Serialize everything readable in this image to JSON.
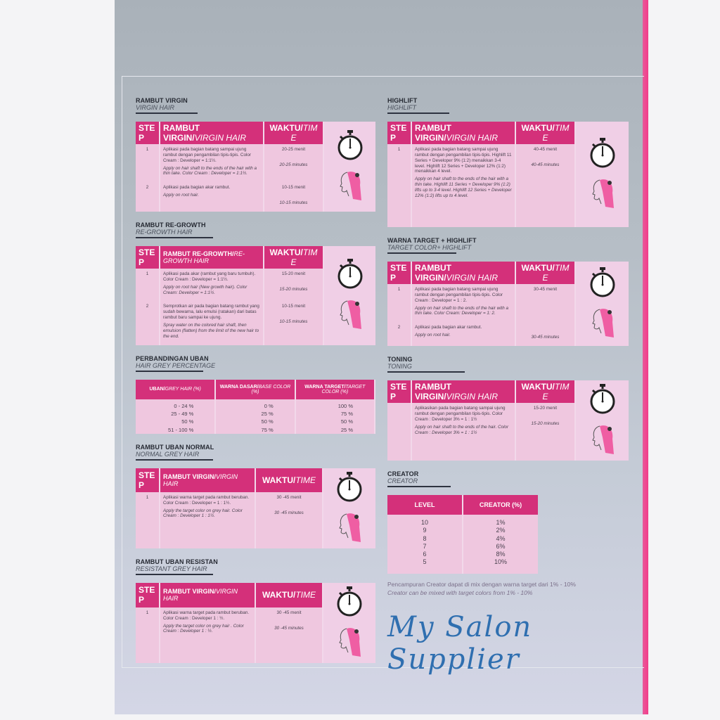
{
  "colors": {
    "header_pink": "#d4307a",
    "body_pink": "#efc7df",
    "watermark_blue": "#2f6fb0"
  },
  "watermark": "My Salon Supplier",
  "sections": {
    "virgin": {
      "title": "RAMBUT VIRGIN",
      "subtitle": "VIRGIN HAIR",
      "h_step": "STEP",
      "h_desc": "RAMBUT VIRGIN/",
      "h_desc_it": "VIRGIN HAIR",
      "h_time": "WAKTU/",
      "h_time_it": "TIME",
      "rows": [
        {
          "step": "1",
          "id": "Aplikasi pada bagian batang sampai ujung rambut dengan pengambilan tipis-tipis. Color Cream : Developer = 1:1½.",
          "en": "Apply on hair shaft to the ends of the hair with a thin take. Color Cream : Developer = 1:1½.",
          "time_id": "20-25 menit",
          "time_en": "20-25 minutes"
        },
        {
          "step": "2",
          "id": "Aplikasi pada bagian akar rambut.",
          "en": "Apply on root hair.",
          "time_id": "10-15 menit",
          "time_en": "10-15 minutes"
        }
      ]
    },
    "highlift": {
      "title": "HIGHLIFT",
      "subtitle": "HIGHLIFT",
      "h_step": "STEP",
      "h_desc": "RAMBUT VIRGIN/",
      "h_desc_it": "VIRGIN HAIR",
      "h_time": "WAKTU/",
      "h_time_it": "TIME",
      "rows": [
        {
          "step": "1",
          "id": "Aplikasi pada bagian batang sampai ujung rambut dengan pengambilan tipis-tipis. Highlift 11 Series + Developer 9% (1:2) menaikkan 3-4 level. Highlift 12 Series + Developer 12% (1:2) menaikkan 4 level.",
          "en": "Apply on hair shaft to the ends of the hair with a thin take. Highlift 11 Series + Developer 9% (1:2) lifts up to 3-4 level. Highlift 12 Series + Developer 12% (1:2) lifts up to 4 level.",
          "time_id": "40-45 menit",
          "time_en": "40-45 minutes"
        }
      ]
    },
    "regrowth": {
      "title": "RAMBUT RE-GROWTH",
      "subtitle": "RE-GROWTH HAIR",
      "h_step": "STEP",
      "h_desc": "RAMBUT RE-GROWTH/",
      "h_desc_it": "RE-GROWTH HAIR",
      "h_time": "WAKTU/",
      "h_time_it": "TIME",
      "rows": [
        {
          "step": "1",
          "id": "Aplikasi pada akar (rambut yang baru tumbuh). Color Cream : Developer = 1:1½.",
          "en": "Apply on root hair (New growth hair). Color Cream: Developer = 1:1½.",
          "time_id": "15-20 menit",
          "time_en": "15-20 minutes"
        },
        {
          "step": "2",
          "id": "Semprotkan air pada bagian batang rambut yang sudah bewarna, lalu emulsi (ratakan) dari batas rambut baru sampai ke ujung.",
          "en": "Spray water on the colored hair shaft, then emulsion (flatten) from the limit of the new hair to the end.",
          "time_id": "10-15 menit",
          "time_en": "10-15 minutes"
        }
      ]
    },
    "target": {
      "title": "WARNA TARGET + HIGHLIFT",
      "subtitle": "TARGET COLOR+ HIGHLIFT",
      "h_step": "STEP",
      "h_desc": "RAMBUT VIRGIN/",
      "h_desc_it": "VIRGIN HAIR",
      "h_time": "WAKTU/",
      "h_time_it": "TIME",
      "rows": [
        {
          "step": "1",
          "id": "Aplikasi pada bagian batang sampai ujung rambut dengan pengambilan tipis-tipis. Color Cream : Developer = 1 : 2.",
          "en": "Apply on hair shaft to the ends of the hair with a thin take. Color Cream: Developer = 1: 2.",
          "time_id": "30-45 menit",
          "time_en": ""
        },
        {
          "step": "2",
          "id": "Aplikasi pada bagian akar rambut.",
          "en": "Apply on root hair.",
          "time_id": "",
          "time_en": "30-45 minutes"
        }
      ]
    },
    "toning": {
      "title": "TONING",
      "subtitle": "TONING",
      "h_step": "STEP",
      "h_desc": "RAMBUT VIRGIN/",
      "h_desc_it": "VIRGIN HAIR",
      "h_time": "WAKTU/",
      "h_time_it": "TIME",
      "rows": [
        {
          "step": "",
          "id": "Aplikasikan pada bagian batang sampai ujung rambut dengan pengambilan tipis-tipis. Color Cream : Developer 3% = 1 : 1½",
          "en": "Apply on hair shaft to the ends of the hair. Color Cream : Developer 3% = 1 : 1½",
          "time_id": "15-20 menit",
          "time_en": "15-20 minutes"
        }
      ]
    },
    "normal": {
      "title": "RAMBUT UBAN NORMAL",
      "subtitle": "NORMAL GREY HAIR",
      "h_step": "STEP",
      "h_desc": "RAMBUT VIRGIN/",
      "h_desc_it": "VIRGIN HAIR",
      "h_time": "WAKTU/",
      "h_time_it": "TIME",
      "rows": [
        {
          "step": "1",
          "id": "Aplikasi warna target pada rambut beruban. Color Cream : Developer = 1 : 1½.",
          "en": "Apply the target color on grey hair. Color Cream : Developer 1 : 1½.",
          "time_id": "30 -45 menit",
          "time_en": "30 -45 minutes"
        }
      ]
    },
    "resistant": {
      "title": "RAMBUT UBAN RESISTAN",
      "subtitle": "RESISTANT GREY HAIR",
      "h_step": "STEP",
      "h_desc": "RAMBUT VIRGIN/",
      "h_desc_it": "VIRGIN HAIR",
      "h_time": "WAKTU/",
      "h_time_it": "TIME",
      "rows": [
        {
          "step": "1",
          "id": "Aplikasi warna target pada rambut beruban. Color Cream : Developer 1 : ½.",
          "en": "Apply the target color on grey hair . Color Cream : Developer 1 : ½.",
          "time_id": "30 -45 menit",
          "time_en": "30 -45 minutes"
        }
      ]
    }
  },
  "grey": {
    "title": "PERBANDINGAN UBAN",
    "subtitle": "HAIR GREY PERCENTAGE",
    "headers": [
      [
        "UBAN/",
        "GREY HAIR (%)"
      ],
      [
        "WARNA DASAR/",
        "BASE COLOR (%)"
      ],
      [
        "WARNA TARGET/",
        "TARGET COLOR (%)"
      ]
    ],
    "rows": [
      [
        "0 - 24 %",
        "0 %",
        "100 %"
      ],
      [
        "25 - 49 %",
        "25 %",
        "75 %"
      ],
      [
        "50 %",
        "50 %",
        "50 %"
      ],
      [
        "51 - 100 %",
        "75 %",
        "25 %"
      ]
    ]
  },
  "creator": {
    "title": "CREATOR",
    "subtitle": "CREATOR",
    "h_level": "LEVEL",
    "h_creator": "CREATOR (%)",
    "levels": [
      "10",
      "9",
      "8",
      "7",
      "6",
      "5"
    ],
    "percents": [
      "1%",
      "2%",
      "4%",
      "6%",
      "8%",
      "10%"
    ],
    "note_id": "Pencampuran Creator  dapat di mix dengan warna target dari 1% - 10%",
    "note_en": "Creator can be mixed with target colors from 1% - 10%"
  }
}
